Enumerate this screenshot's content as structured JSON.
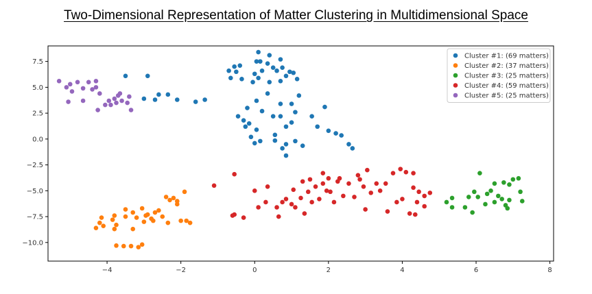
{
  "chart_data": {
    "type": "scatter",
    "title": "Two-Dimensional Representation of Matter Clustering in Multidimensional Space",
    "xlabel": "",
    "ylabel": "",
    "xlim": [
      -5.6,
      8.1
    ],
    "ylim": [
      -11.8,
      9.0
    ],
    "x_ticks": [
      -4,
      -2,
      0,
      2,
      4,
      6,
      8
    ],
    "y_ticks": [
      7.5,
      5.0,
      2.5,
      0.0,
      -2.5,
      -5.0,
      -7.5,
      -10.0
    ],
    "y_tick_labels": [
      "7.5",
      "5.0",
      "2.5",
      "0.0",
      "−2.5",
      "−5.0",
      "−7.5",
      "−10.0"
    ],
    "x_tick_labels": [
      "−4",
      "−2",
      "0",
      "2",
      "4",
      "6",
      "8"
    ],
    "legend_position": "top-right",
    "grid": false,
    "series": [
      {
        "name": "Cluster #1: (69 matters)",
        "color": "#1f77b4",
        "points": [
          [
            -3.5,
            6.1
          ],
          [
            -2.9,
            6.1
          ],
          [
            -2.6,
            4.3
          ],
          [
            -2.35,
            4.3
          ],
          [
            -2.7,
            3.8
          ],
          [
            -3.0,
            3.9
          ],
          [
            -2.1,
            3.8
          ],
          [
            -1.6,
            3.6
          ],
          [
            -1.35,
            3.8
          ],
          [
            -0.7,
            6.6
          ],
          [
            -0.55,
            7.0
          ],
          [
            -0.4,
            7.1
          ],
          [
            -0.5,
            6.5
          ],
          [
            -0.35,
            5.8
          ],
          [
            -0.65,
            5.9
          ],
          [
            0.1,
            8.4
          ],
          [
            0.15,
            7.5
          ],
          [
            0.05,
            7.5
          ],
          [
            0.35,
            7.3
          ],
          [
            0.4,
            8.1
          ],
          [
            0.7,
            7.7
          ],
          [
            0.5,
            6.9
          ],
          [
            0.2,
            6.6
          ],
          [
            0.0,
            6.3
          ],
          [
            0.1,
            5.9
          ],
          [
            -0.05,
            5.5
          ],
          [
            0.6,
            6.6
          ],
          [
            0.85,
            6.1
          ],
          [
            0.75,
            6.9
          ],
          [
            0.95,
            6.5
          ],
          [
            1.05,
            6.4
          ],
          [
            1.15,
            5.8
          ],
          [
            0.7,
            5.6
          ],
          [
            0.4,
            5.5
          ],
          [
            -0.2,
            3.0
          ],
          [
            0.05,
            3.7
          ],
          [
            0.35,
            4.4
          ],
          [
            0.7,
            3.4
          ],
          [
            1.0,
            3.4
          ],
          [
            1.2,
            4.2
          ],
          [
            1.1,
            2.6
          ],
          [
            0.2,
            2.7
          ],
          [
            0.5,
            2.2
          ],
          [
            0.7,
            2.2
          ],
          [
            -0.45,
            2.2
          ],
          [
            -0.3,
            1.8
          ],
          [
            -0.15,
            1.5
          ],
          [
            -0.25,
            1.2
          ],
          [
            0.05,
            0.9
          ],
          [
            0.15,
            -0.2
          ],
          [
            0.0,
            -0.4
          ],
          [
            -0.1,
            0.2
          ],
          [
            0.55,
            -0.15
          ],
          [
            0.55,
            0.4
          ],
          [
            0.85,
            1.2
          ],
          [
            1.0,
            1.6
          ],
          [
            1.1,
            -0.2
          ],
          [
            0.85,
            -0.5
          ],
          [
            0.75,
            -0.9
          ],
          [
            0.85,
            -1.6
          ],
          [
            1.3,
            -0.65
          ],
          [
            1.55,
            2.2
          ],
          [
            1.9,
            3.1
          ],
          [
            1.7,
            1.2
          ],
          [
            2.0,
            0.8
          ],
          [
            2.2,
            0.55
          ],
          [
            2.35,
            0.35
          ],
          [
            2.55,
            -0.5
          ],
          [
            2.65,
            -0.9
          ]
        ]
      },
      {
        "name": "Cluster #2: (37 matters)",
        "color": "#ff7f0e",
        "points": [
          [
            -4.3,
            -8.6
          ],
          [
            -4.2,
            -8.1
          ],
          [
            -4.1,
            -8.4
          ],
          [
            -4.15,
            -7.6
          ],
          [
            -3.85,
            -7.8
          ],
          [
            -3.8,
            -8.7
          ],
          [
            -3.75,
            -8.3
          ],
          [
            -3.5,
            -7.5
          ],
          [
            -3.3,
            -8.7
          ],
          [
            -3.0,
            -8.0
          ],
          [
            -2.95,
            -7.4
          ],
          [
            -3.2,
            -7.6
          ],
          [
            -3.3,
            -7.1
          ],
          [
            -3.5,
            -6.8
          ],
          [
            -3.8,
            -7.4
          ],
          [
            -2.75,
            -7.9
          ],
          [
            -2.7,
            -7.1
          ],
          [
            -2.6,
            -6.9
          ],
          [
            -2.5,
            -7.5
          ],
          [
            -2.35,
            -8.1
          ],
          [
            -2.4,
            -5.6
          ],
          [
            -2.3,
            -5.9
          ],
          [
            -2.2,
            -5.7
          ],
          [
            -2.1,
            -6.0
          ],
          [
            -2.0,
            -7.9
          ],
          [
            -1.85,
            -7.9
          ],
          [
            -1.75,
            -8.1
          ],
          [
            -2.1,
            -6.3
          ],
          [
            -1.9,
            -5.1
          ],
          [
            -2.8,
            -7.7
          ],
          [
            -2.9,
            -7.3
          ],
          [
            -3.05,
            -6.7
          ],
          [
            -3.55,
            -10.35
          ],
          [
            -3.35,
            -10.35
          ],
          [
            -3.05,
            -10.2
          ],
          [
            -3.75,
            -10.3
          ],
          [
            -3.15,
            -10.45
          ]
        ]
      },
      {
        "name": "Cluster #3: (25 matters)",
        "color": "#2ca02c",
        "points": [
          [
            5.2,
            -6.1
          ],
          [
            5.35,
            -5.7
          ],
          [
            5.35,
            -6.6
          ],
          [
            5.7,
            -6.6
          ],
          [
            5.8,
            -5.6
          ],
          [
            5.9,
            -7.1
          ],
          [
            5.95,
            -5.1
          ],
          [
            6.05,
            -5.6
          ],
          [
            6.1,
            -3.3
          ],
          [
            6.3,
            -5.3
          ],
          [
            6.4,
            -5.0
          ],
          [
            6.5,
            -4.3
          ],
          [
            6.5,
            -6.1
          ],
          [
            6.7,
            -5.8
          ],
          [
            6.75,
            -4.2
          ],
          [
            6.8,
            -6.4
          ],
          [
            6.85,
            -6.7
          ],
          [
            6.9,
            -4.4
          ],
          [
            6.9,
            -5.9
          ],
          [
            7.0,
            -3.9
          ],
          [
            7.15,
            -3.8
          ],
          [
            7.2,
            -5.1
          ],
          [
            7.25,
            -6.0
          ],
          [
            6.25,
            -6.3
          ],
          [
            6.6,
            -5.5
          ]
        ]
      },
      {
        "name": "Cluster #4: (59 matters)",
        "color": "#d62728",
        "points": [
          [
            -1.1,
            -4.5
          ],
          [
            -0.55,
            -3.4
          ],
          [
            -0.6,
            -7.4
          ],
          [
            -0.55,
            -7.3
          ],
          [
            -0.3,
            -7.6
          ],
          [
            0.0,
            -5.0
          ],
          [
            0.1,
            -6.6
          ],
          [
            0.3,
            -6.1
          ],
          [
            0.35,
            -4.6
          ],
          [
            0.6,
            -6.6
          ],
          [
            0.65,
            -7.5
          ],
          [
            0.75,
            -6.1
          ],
          [
            0.85,
            -5.8
          ],
          [
            1.0,
            -6.3
          ],
          [
            1.05,
            -4.9
          ],
          [
            1.1,
            -6.6
          ],
          [
            1.25,
            -5.7
          ],
          [
            1.3,
            -4.1
          ],
          [
            1.35,
            -7.2
          ],
          [
            1.45,
            -5.1
          ],
          [
            1.5,
            -3.9
          ],
          [
            1.55,
            -6.1
          ],
          [
            1.65,
            -4.6
          ],
          [
            1.75,
            -5.8
          ],
          [
            1.85,
            -4.3
          ],
          [
            1.85,
            -3.3
          ],
          [
            2.0,
            -3.8
          ],
          [
            2.05,
            -5.1
          ],
          [
            2.15,
            -6.1
          ],
          [
            2.25,
            -4.1
          ],
          [
            2.3,
            -3.8
          ],
          [
            2.4,
            -5.5
          ],
          [
            2.55,
            -4.3
          ],
          [
            2.7,
            -5.6
          ],
          [
            2.8,
            -3.5
          ],
          [
            2.85,
            -3.9
          ],
          [
            2.95,
            -4.6
          ],
          [
            3.0,
            -6.8
          ],
          [
            3.05,
            -3.0
          ],
          [
            3.15,
            -5.2
          ],
          [
            3.3,
            -4.3
          ],
          [
            3.4,
            -5.0
          ],
          [
            3.55,
            -4.3
          ],
          [
            3.6,
            -7.0
          ],
          [
            3.75,
            -3.3
          ],
          [
            3.85,
            -6.1
          ],
          [
            3.95,
            -2.9
          ],
          [
            4.0,
            -5.8
          ],
          [
            4.1,
            -3.2
          ],
          [
            4.2,
            -7.2
          ],
          [
            4.3,
            -3.3
          ],
          [
            4.3,
            -4.7
          ],
          [
            4.4,
            -6.1
          ],
          [
            4.45,
            -5.1
          ],
          [
            4.6,
            -6.5
          ],
          [
            4.75,
            -5.2
          ],
          [
            4.6,
            -5.5
          ],
          [
            4.35,
            -7.3
          ],
          [
            1.95,
            -5.0
          ]
        ]
      },
      {
        "name": "Cluster #5: (25 matters)",
        "color": "#9467bd",
        "points": [
          [
            -5.3,
            5.6
          ],
          [
            -5.1,
            5.0
          ],
          [
            -5.0,
            5.3
          ],
          [
            -4.95,
            4.6
          ],
          [
            -4.8,
            5.5
          ],
          [
            -4.65,
            4.9
          ],
          [
            -4.5,
            5.5
          ],
          [
            -4.4,
            4.8
          ],
          [
            -4.3,
            5.0
          ],
          [
            -4.3,
            5.6
          ],
          [
            -4.2,
            4.4
          ],
          [
            -5.05,
            3.6
          ],
          [
            -4.65,
            3.7
          ],
          [
            -4.25,
            2.8
          ],
          [
            -4.05,
            3.3
          ],
          [
            -3.95,
            3.7
          ],
          [
            -3.9,
            3.3
          ],
          [
            -3.8,
            3.9
          ],
          [
            -3.75,
            3.5
          ],
          [
            -3.7,
            4.2
          ],
          [
            -3.65,
            4.4
          ],
          [
            -3.6,
            3.7
          ],
          [
            -3.45,
            3.5
          ],
          [
            -3.4,
            4.1
          ],
          [
            -3.35,
            2.8
          ]
        ]
      }
    ]
  }
}
